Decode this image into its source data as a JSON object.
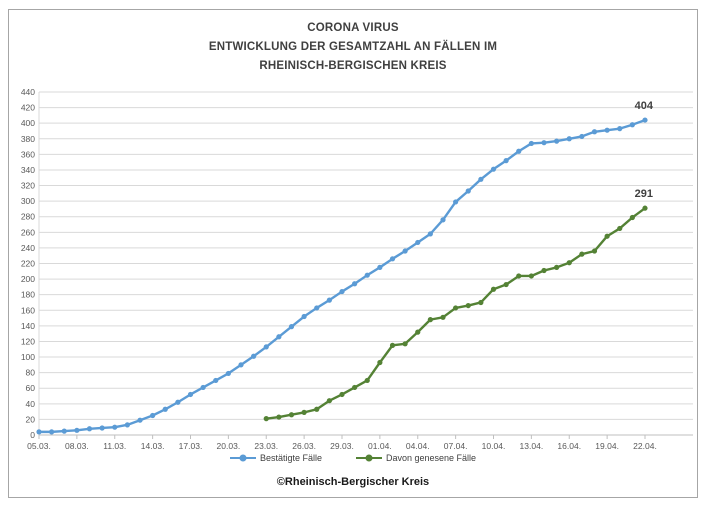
{
  "title": {
    "line1": "CORONA VIRUS",
    "line2": "ENTWICKLUNG DER GESAMTZAHL AN FÄLLEN IM",
    "line3": "RHEINISCH-BERGISCHEN KREIS"
  },
  "footer": {
    "credit": "©Rheinisch-Bergischer Kreis"
  },
  "legend": {
    "items": [
      {
        "label": "Bestätigte Fälle",
        "color": "#5b9bd5"
      },
      {
        "label": "Davon genesene Fälle",
        "color": "#548235"
      }
    ]
  },
  "colors": {
    "grid": "#d9d9d9",
    "axis_line": "#bfbfbf",
    "axis_text": "#595959",
    "data_label_text": "#404040",
    "frame_border": "#a6a6a6"
  },
  "chart_data": {
    "type": "line",
    "title": "CORONA VIRUS — ENTWICKLUNG DER GESAMTZAHL AN FÄLLEN IM RHEINISCH-BERGISCHEN KREIS",
    "xlabel": "",
    "ylabel": "",
    "ylim": [
      0,
      440
    ],
    "y_step": 20,
    "grid": true,
    "legend_position": "bottom",
    "x_tick_every": 3,
    "x": [
      "05.03.",
      "06.03.",
      "07.03.",
      "08.03.",
      "09.03.",
      "10.03.",
      "11.03.",
      "12.03.",
      "13.03.",
      "14.03.",
      "15.03.",
      "16.03.",
      "17.03.",
      "18.03.",
      "19.03.",
      "20.03.",
      "21.03.",
      "22.03.",
      "23.03.",
      "24.03.",
      "25.03.",
      "26.03.",
      "27.03.",
      "28.03.",
      "29.03.",
      "30.03.",
      "31.03.",
      "01.04.",
      "02.04.",
      "03.04.",
      "04.04.",
      "05.04.",
      "06.04.",
      "07.04.",
      "08.04.",
      "09.04.",
      "10.04.",
      "11.04.",
      "12.04.",
      "13.04.",
      "14.04.",
      "15.04.",
      "16.04.",
      "17.04.",
      "18.04.",
      "19.04.",
      "20.04.",
      "21.04.",
      "22.04."
    ],
    "series": [
      {
        "name": "Bestätigte Fälle",
        "color": "#5b9bd5",
        "start_index": 0,
        "end_label": "404",
        "values": [
          4,
          4,
          5,
          6,
          8,
          9,
          10,
          13,
          19,
          25,
          33,
          42,
          52,
          61,
          70,
          79,
          90,
          101,
          113,
          126,
          139,
          152,
          163,
          173,
          184,
          194,
          205,
          215,
          226,
          236,
          247,
          258,
          276,
          299,
          313,
          328,
          341,
          352,
          364,
          374,
          375,
          377,
          380,
          383,
          389,
          391,
          393,
          398,
          404
        ]
      },
      {
        "name": "Davon genesene Fälle",
        "color": "#548235",
        "start_index": 18,
        "end_label": "291",
        "values": [
          21,
          23,
          26,
          29,
          33,
          44,
          52,
          61,
          70,
          93,
          115,
          117,
          132,
          148,
          151,
          163,
          166,
          170,
          187,
          193,
          204,
          204,
          211,
          215,
          221,
          232,
          236,
          255,
          265,
          279,
          291
        ]
      }
    ]
  }
}
